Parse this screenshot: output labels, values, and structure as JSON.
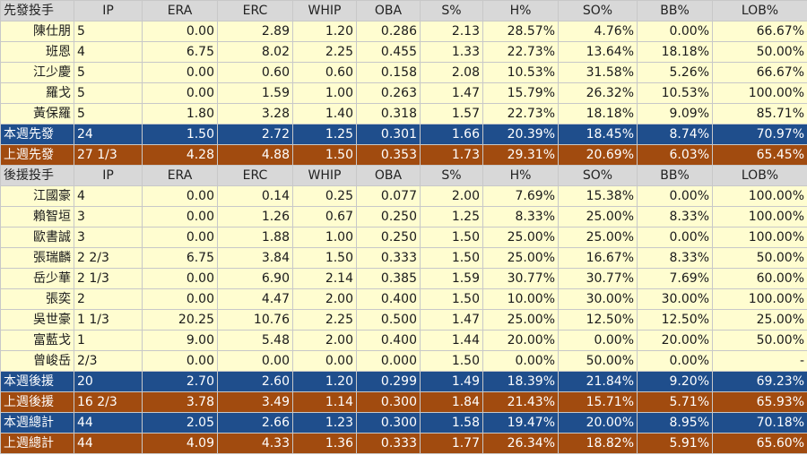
{
  "colors": {
    "header_bg": "#d8d8d8",
    "row_bg": "#fffdd0",
    "summary_blue": "#1f4e8c",
    "summary_brown": "#a14b0f",
    "summary_text": "#ffffff"
  },
  "sections": [
    {
      "header": [
        "先發投手",
        "IP",
        "ERA",
        "ERC",
        "WHIP",
        "OBA",
        "S%",
        "H%",
        "SO%",
        "BB%",
        "LOB%"
      ],
      "rows": [
        [
          "陳仕朋",
          "5",
          "0.00",
          "2.89",
          "1.20",
          "0.286",
          "2.13",
          "28.57%",
          "4.76%",
          "0.00%",
          "66.67%"
        ],
        [
          "班恩",
          "4",
          "6.75",
          "8.02",
          "2.25",
          "0.455",
          "1.33",
          "22.73%",
          "13.64%",
          "18.18%",
          "50.00%"
        ],
        [
          "江少慶",
          "5",
          "0.00",
          "0.60",
          "0.60",
          "0.158",
          "2.08",
          "10.53%",
          "31.58%",
          "5.26%",
          "66.67%"
        ],
        [
          "羅戈",
          "5",
          "0.00",
          "1.59",
          "1.00",
          "0.263",
          "1.47",
          "15.79%",
          "26.32%",
          "10.53%",
          "100.00%"
        ],
        [
          "黃保羅",
          "5",
          "1.80",
          "3.28",
          "1.40",
          "0.318",
          "1.57",
          "22.73%",
          "18.18%",
          "9.09%",
          "85.71%"
        ]
      ],
      "summaries": [
        {
          "color": "blue",
          "cells": [
            "本週先發",
            "24",
            "1.50",
            "2.72",
            "1.25",
            "0.301",
            "1.66",
            "20.39%",
            "18.45%",
            "8.74%",
            "70.97%"
          ]
        },
        {
          "color": "brown",
          "cells": [
            "上週先發",
            "27 1/3",
            "4.28",
            "4.88",
            "1.50",
            "0.353",
            "1.73",
            "29.31%",
            "20.69%",
            "6.03%",
            "65.45%"
          ]
        }
      ]
    },
    {
      "header": [
        "後援投手",
        "IP",
        "ERA",
        "ERC",
        "WHIP",
        "OBA",
        "S%",
        "H%",
        "SO%",
        "BB%",
        "LOB%"
      ],
      "rows": [
        [
          "江國豪",
          "4",
          "0.00",
          "0.14",
          "0.25",
          "0.077",
          "2.00",
          "7.69%",
          "15.38%",
          "0.00%",
          "100.00%"
        ],
        [
          "賴智垣",
          "3",
          "0.00",
          "1.26",
          "0.67",
          "0.250",
          "1.25",
          "8.33%",
          "25.00%",
          "8.33%",
          "100.00%"
        ],
        [
          "歐書誠",
          "3",
          "0.00",
          "1.88",
          "1.00",
          "0.250",
          "1.50",
          "25.00%",
          "25.00%",
          "0.00%",
          "100.00%"
        ],
        [
          "張瑞麟",
          "2 2/3",
          "6.75",
          "3.84",
          "1.50",
          "0.333",
          "1.50",
          "25.00%",
          "16.67%",
          "8.33%",
          "50.00%"
        ],
        [
          "岳少華",
          "2 1/3",
          "0.00",
          "6.90",
          "2.14",
          "0.385",
          "1.59",
          "30.77%",
          "30.77%",
          "7.69%",
          "60.00%"
        ],
        [
          "張奕",
          "2",
          "0.00",
          "4.47",
          "2.00",
          "0.400",
          "1.50",
          "10.00%",
          "30.00%",
          "30.00%",
          "100.00%"
        ],
        [
          "吳世豪",
          "1 1/3",
          "20.25",
          "10.76",
          "2.25",
          "0.500",
          "1.47",
          "25.00%",
          "12.50%",
          "12.50%",
          "25.00%"
        ],
        [
          "富藍戈",
          "1",
          "9.00",
          "5.48",
          "2.00",
          "0.400",
          "1.44",
          "20.00%",
          "0.00%",
          "20.00%",
          "50.00%"
        ],
        [
          "曾峻岳",
          "2/3",
          "0.00",
          "0.00",
          "0.00",
          "0.000",
          "1.50",
          "0.00%",
          "50.00%",
          "0.00%",
          "-"
        ]
      ],
      "summaries": [
        {
          "color": "blue",
          "cells": [
            "本週後援",
            "20",
            "2.70",
            "2.60",
            "1.20",
            "0.299",
            "1.49",
            "18.39%",
            "21.84%",
            "9.20%",
            "69.23%"
          ]
        },
        {
          "color": "brown",
          "cells": [
            "上週後援",
            "16 2/3",
            "3.78",
            "3.49",
            "1.14",
            "0.300",
            "1.84",
            "21.43%",
            "15.71%",
            "5.71%",
            "65.93%"
          ]
        },
        {
          "color": "blue",
          "cells": [
            "本週總計",
            "44",
            "2.05",
            "2.66",
            "1.23",
            "0.300",
            "1.58",
            "19.47%",
            "20.00%",
            "8.95%",
            "70.18%"
          ]
        },
        {
          "color": "brown",
          "cells": [
            "上週總計",
            "44",
            "4.09",
            "4.33",
            "1.36",
            "0.333",
            "1.77",
            "26.34%",
            "18.82%",
            "5.91%",
            "65.60%"
          ]
        }
      ]
    }
  ]
}
